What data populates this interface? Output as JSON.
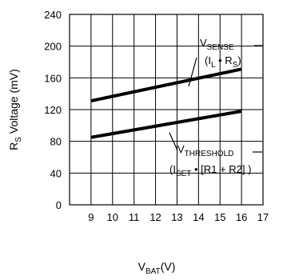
{
  "chart_data": {
    "type": "line",
    "x_ticks": [
      9,
      10,
      11,
      12,
      13,
      14,
      15,
      16,
      17
    ],
    "y_ticks": [
      0,
      40,
      80,
      120,
      160,
      200,
      240
    ],
    "xlim": [
      8,
      17
    ],
    "ylim": [
      0,
      240
    ],
    "grid": true,
    "xlabel": {
      "main": "V",
      "sub": "BAT",
      "tail": "(V)"
    },
    "ylabel": {
      "main": "R",
      "sub": "S",
      "tail": " Voltage (mV)"
    },
    "series": [
      {
        "x": [
          9,
          16
        ],
        "y": [
          131,
          171
        ],
        "label": {
          "main": "V",
          "sub": "SENSE"
        },
        "formula": {
          "open": "(I",
          "sub": "L",
          "mid": " • R",
          "sub2": "S",
          "close": ")"
        }
      },
      {
        "x": [
          9,
          16
        ],
        "y": [
          85,
          118
        ],
        "label": {
          "main": "V",
          "sub": "THRESHOLD"
        },
        "formula": {
          "open": "(I",
          "sub": "SET",
          "mid": " • [R1 + R2] )"
        }
      }
    ]
  }
}
